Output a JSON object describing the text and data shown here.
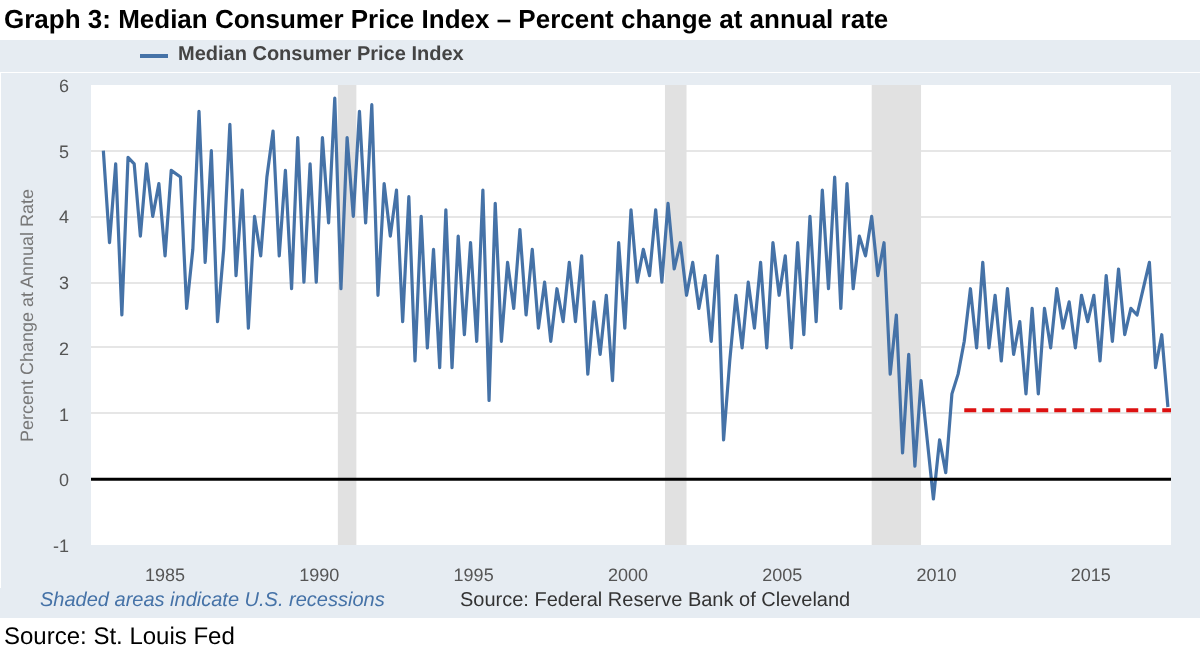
{
  "chart_data": {
    "type": "line",
    "title": "Graph 3: Median Consumer Price Index – Percent change at annual rate",
    "ylabel": "Percent Change at Annual Rate",
    "annotations": [
      "Shaded areas indicate U.S. recessions",
      "Source: Federal Reserve Bank of Cleveland",
      "Source: St. Louis Fed"
    ],
    "xlim": [
      1982.6,
      2017.6
    ],
    "ylim": [
      -1,
      6
    ],
    "xticks": [
      1985,
      1990,
      1995,
      2000,
      2005,
      2010,
      2015
    ],
    "yticks": [
      -1,
      0,
      1,
      2,
      3,
      4,
      5,
      6
    ],
    "grid": "y",
    "legend": "top left",
    "line_style": "solid",
    "marker": "none",
    "bands": [
      {
        "axis": "x",
        "from": 1990.6,
        "to": 1991.2,
        "color": "#e1e1e1"
      },
      {
        "axis": "x",
        "from": 2001.2,
        "to": 2001.9,
        "color": "#e1e1e1"
      },
      {
        "axis": "x",
        "from": 2007.9,
        "to": 2009.5,
        "color": "#e1e1e1"
      }
    ],
    "ref_lines": [
      {
        "axis": "y",
        "value": 0,
        "color": "#000000",
        "line_style": "solid"
      }
    ],
    "series": [
      {
        "name": "Median Consumer Price Index",
        "color": "#4572a7",
        "x": [
          1983.0,
          1983.2,
          1983.4,
          1983.6,
          1983.8,
          1984.0,
          1984.2,
          1984.4,
          1984.6,
          1984.8,
          1985.0,
          1985.2,
          1985.5,
          1985.7,
          1985.9,
          1986.1,
          1986.3,
          1986.5,
          1986.7,
          1986.9,
          1987.1,
          1987.3,
          1987.5,
          1987.7,
          1987.9,
          1988.1,
          1988.3,
          1988.5,
          1988.7,
          1988.9,
          1989.1,
          1989.3,
          1989.5,
          1989.7,
          1989.9,
          1990.1,
          1990.3,
          1990.5,
          1990.7,
          1990.9,
          1991.1,
          1991.3,
          1991.5,
          1991.7,
          1991.9,
          1992.1,
          1992.3,
          1992.5,
          1992.7,
          1992.9,
          1993.1,
          1993.3,
          1993.5,
          1993.7,
          1993.9,
          1994.1,
          1994.3,
          1994.5,
          1994.7,
          1994.9,
          1995.1,
          1995.3,
          1995.5,
          1995.7,
          1995.9,
          1996.1,
          1996.3,
          1996.5,
          1996.7,
          1996.9,
          1997.1,
          1997.3,
          1997.5,
          1997.7,
          1997.9,
          1998.1,
          1998.3,
          1998.5,
          1998.7,
          1998.9,
          1999.1,
          1999.3,
          1999.5,
          1999.7,
          1999.9,
          2000.1,
          2000.3,
          2000.5,
          2000.7,
          2000.9,
          2001.1,
          2001.3,
          2001.5,
          2001.7,
          2001.9,
          2002.1,
          2002.3,
          2002.5,
          2002.7,
          2002.9,
          2003.1,
          2003.3,
          2003.5,
          2003.7,
          2003.9,
          2004.1,
          2004.3,
          2004.5,
          2004.7,
          2004.9,
          2005.1,
          2005.3,
          2005.5,
          2005.7,
          2005.9,
          2006.1,
          2006.3,
          2006.5,
          2006.7,
          2006.9,
          2007.1,
          2007.3,
          2007.5,
          2007.7,
          2007.9,
          2008.1,
          2008.3,
          2008.5,
          2008.7,
          2008.9,
          2009.1,
          2009.3,
          2009.5,
          2009.7,
          2009.9,
          2010.1,
          2010.3,
          2010.5,
          2010.7,
          2010.9,
          2011.1,
          2011.3,
          2011.5,
          2011.7,
          2011.9,
          2012.1,
          2012.3,
          2012.5,
          2012.7,
          2012.9,
          2013.1,
          2013.3,
          2013.5,
          2013.7,
          2013.9,
          2014.1,
          2014.3,
          2014.5,
          2014.7,
          2014.9,
          2015.1,
          2015.3,
          2015.5,
          2015.7,
          2015.9,
          2016.1,
          2016.3,
          2016.5,
          2016.7,
          2016.9,
          2017.1,
          2017.3,
          2017.5
        ],
        "values": [
          5.0,
          3.6,
          4.8,
          2.5,
          4.9,
          4.8,
          3.7,
          4.8,
          4.0,
          4.5,
          3.4,
          4.7,
          4.6,
          2.6,
          3.5,
          5.6,
          3.3,
          5.0,
          2.4,
          3.5,
          5.4,
          3.1,
          4.4,
          2.3,
          4.0,
          3.4,
          4.6,
          5.3,
          3.4,
          4.7,
          2.9,
          5.2,
          3.0,
          4.8,
          3.0,
          5.2,
          3.9,
          5.8,
          2.9,
          5.2,
          4.0,
          5.6,
          3.9,
          5.7,
          2.8,
          4.5,
          3.7,
          4.4,
          2.4,
          4.3,
          1.8,
          4.0,
          2.0,
          3.5,
          1.7,
          4.1,
          1.7,
          3.7,
          2.2,
          3.6,
          2.1,
          4.4,
          1.2,
          4.2,
          2.1,
          3.3,
          2.6,
          3.8,
          2.5,
          3.5,
          2.3,
          3.0,
          2.1,
          2.9,
          2.4,
          3.3,
          2.4,
          3.4,
          1.6,
          2.7,
          1.9,
          2.8,
          1.5,
          3.6,
          2.3,
          4.1,
          3.0,
          3.5,
          3.1,
          4.1,
          3.0,
          4.2,
          3.2,
          3.6,
          2.8,
          3.3,
          2.6,
          3.1,
          2.1,
          3.4,
          0.6,
          1.8,
          2.8,
          2.0,
          3.0,
          2.3,
          3.3,
          2.0,
          3.6,
          2.8,
          3.4,
          2.0,
          3.6,
          2.2,
          4.0,
          2.4,
          4.4,
          2.9,
          4.6,
          2.6,
          4.5,
          2.9,
          3.7,
          3.4,
          4.0,
          3.1,
          3.6,
          1.6,
          2.5,
          0.4,
          1.9,
          0.2,
          1.5,
          0.6,
          -0.3,
          0.6,
          0.1,
          1.3,
          1.6,
          2.1,
          2.9,
          2.0,
          3.3,
          2.0,
          2.8,
          1.8,
          2.9,
          1.9,
          2.4,
          1.3,
          2.6,
          1.3,
          2.6,
          2.0,
          2.9,
          2.3,
          2.7,
          2.0,
          2.8,
          2.4,
          2.8,
          1.8,
          3.1,
          2.1,
          3.2,
          2.2,
          2.6,
          2.5,
          2.9,
          3.3,
          1.7,
          2.2,
          1.1
        ]
      },
      {
        "color": "#dd1111",
        "type": "line",
        "line_style": "dashed",
        "x": [
          2010.9,
          2017.6
        ],
        "values": [
          1.05,
          1.05
        ]
      }
    ]
  }
}
